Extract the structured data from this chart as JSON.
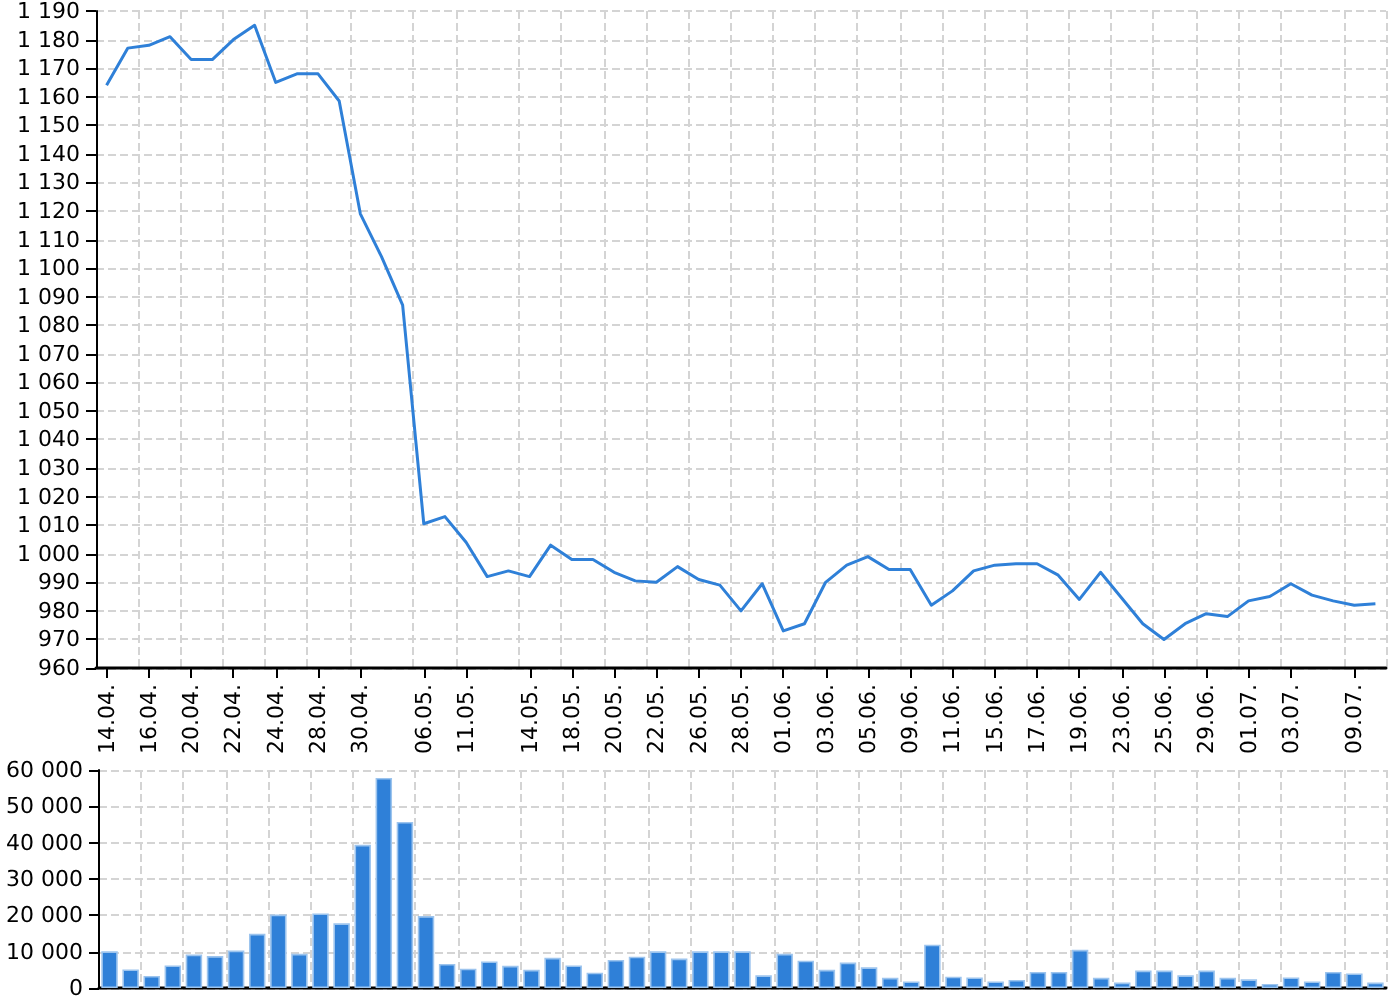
{
  "chart_data": [
    {
      "type": "line",
      "categories": [
        "14.04.",
        null,
        "16.04.",
        null,
        "20.04.",
        null,
        "22.04.",
        null,
        "24.04.",
        null,
        "28.04.",
        null,
        "30.04.",
        null,
        null,
        "06.05.",
        null,
        "11.05.",
        null,
        null,
        "14.05.",
        null,
        "18.05.",
        null,
        "20.05.",
        null,
        "22.05.",
        null,
        "26.05.",
        null,
        "28.05.",
        null,
        "01.06.",
        null,
        "03.06.",
        null,
        "05.06.",
        null,
        "09.06.",
        null,
        "11.06.",
        null,
        "15.06.",
        null,
        "17.06.",
        null,
        "19.06.",
        null,
        "23.06.",
        null,
        "25.06.",
        null,
        "29.06.",
        null,
        "01.07.",
        null,
        "03.07.",
        null,
        null,
        "09.07.",
        null
      ],
      "values": [
        1164,
        1177,
        1178,
        1181,
        1173,
        1173,
        1180,
        1185,
        1165,
        1168,
        1168,
        1158.5,
        1119,
        1104,
        1087,
        1010.5,
        1013,
        1004,
        992,
        994,
        992,
        1003,
        998,
        998,
        993.5,
        990.5,
        990,
        995.5,
        991,
        989,
        980,
        989.5,
        973,
        975.5,
        990,
        996,
        999,
        994.5,
        994.5,
        982,
        987,
        994,
        996,
        996.5,
        996.5,
        992.5,
        984,
        993.5,
        984.5,
        975.5,
        970,
        975.5,
        979,
        978,
        983.5,
        985,
        989.5,
        985.5,
        983.5,
        982,
        982.5
      ],
      "color": "#2f80d8",
      "ylim": [
        960,
        1190
      ],
      "yticks": [
        960,
        970,
        980,
        990,
        {
          "value": 1000,
          "label": "1 000"
        },
        {
          "value": 1010,
          "label": "1 010"
        },
        {
          "value": 1020,
          "label": "1 020"
        },
        {
          "value": 1030,
          "label": "1 030"
        },
        {
          "value": 1040,
          "label": "1 040"
        },
        {
          "value": 1050,
          "label": "1 050"
        },
        {
          "value": 1060,
          "label": "1 060"
        },
        {
          "value": 1070,
          "label": "1 070"
        },
        {
          "value": 1080,
          "label": "1 080"
        },
        {
          "value": 1090,
          "label": "1 090"
        },
        {
          "value": 1100,
          "label": "1 100"
        },
        {
          "value": 1110,
          "label": "1 110"
        },
        {
          "value": 1120,
          "label": "1 120"
        },
        {
          "value": 1130,
          "label": "1 130"
        },
        {
          "value": 1140,
          "label": "1 140"
        },
        {
          "value": 1150,
          "label": "1 150"
        },
        {
          "value": 1160,
          "label": "1 160"
        },
        {
          "value": 1170,
          "label": "1 170"
        },
        {
          "value": 1180,
          "label": "1 180"
        },
        {
          "value": 1190,
          "label": "1 190"
        }
      ],
      "grid": true
    },
    {
      "type": "bar",
      "categories": [
        "14.04.",
        null,
        "16.04.",
        null,
        "20.04.",
        null,
        "22.04.",
        null,
        "24.04.",
        null,
        "28.04.",
        null,
        "30.04.",
        null,
        null,
        "06.05.",
        null,
        "11.05.",
        null,
        null,
        "14.05.",
        null,
        "18.05.",
        null,
        "20.05.",
        null,
        "22.05.",
        null,
        "26.05.",
        null,
        "28.05.",
        null,
        "01.06.",
        null,
        "03.06.",
        null,
        "05.06.",
        null,
        "09.06.",
        null,
        "11.06.",
        null,
        "15.06.",
        null,
        "17.06.",
        null,
        "19.06.",
        null,
        "23.06.",
        null,
        "25.06.",
        null,
        "29.06.",
        null,
        "01.07.",
        null,
        "03.07.",
        null,
        null,
        "09.07.",
        null
      ],
      "values": [
        10100,
        5100,
        3300,
        6200,
        9200,
        8800,
        10300,
        14900,
        20200,
        9400,
        20500,
        17800,
        39400,
        57800,
        45700,
        19800,
        6600,
        5300,
        7300,
        6100,
        5000,
        8300,
        6200,
        4200,
        7700,
        8600,
        10100,
        8100,
        10100,
        10100,
        10100,
        3500,
        9400,
        7500,
        5000,
        7000,
        5700,
        2800,
        1800,
        11900,
        3100,
        2900,
        1800,
        2200,
        4400,
        4400,
        10500,
        2800,
        1500,
        4800,
        4800,
        3500,
        4800,
        2800,
        2400,
        1100,
        2900,
        1800,
        4400,
        4000,
        1500
      ],
      "color": "#2f80d8",
      "ylim": [
        0,
        60000
      ],
      "yticks": [
        0,
        {
          "value": 10000,
          "label": "10 000"
        },
        {
          "value": 20000,
          "label": "20 000"
        },
        {
          "value": 30000,
          "label": "30 000"
        },
        {
          "value": 40000,
          "label": "40 000"
        },
        {
          "value": 50000,
          "label": "50 000"
        },
        {
          "value": 60000,
          "label": "60 000"
        }
      ],
      "grid": true,
      "tick_labels": "y"
    }
  ]
}
